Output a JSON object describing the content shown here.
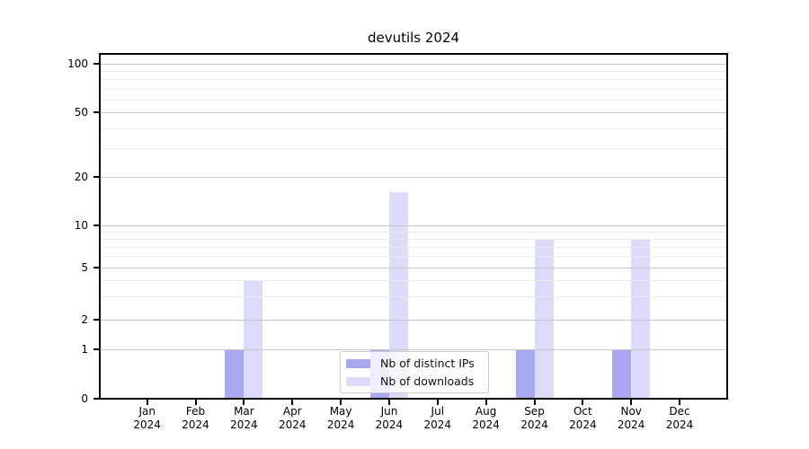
{
  "chart_data": {
    "type": "bar",
    "title": "devutils 2024",
    "categories": [
      "Jan",
      "Feb",
      "Mar",
      "Apr",
      "May",
      "Jun",
      "Jul",
      "Aug",
      "Sep",
      "Oct",
      "Nov",
      "Dec"
    ],
    "category_year": "2024",
    "series": [
      {
        "name": "Nb of distinct IPs",
        "color": "#a8a8f0",
        "values": [
          0,
          0,
          1,
          0,
          0,
          1,
          0,
          0,
          1,
          0,
          1,
          0
        ]
      },
      {
        "name": "Nb of downloads",
        "color": "#dcdcfa",
        "values": [
          0,
          0,
          4,
          0,
          0,
          16,
          0,
          0,
          8,
          0,
          8,
          0
        ]
      }
    ],
    "yaxis": {
      "scale": "symlog",
      "major_ticks": [
        0,
        1,
        2,
        5,
        10,
        20,
        50,
        100
      ],
      "minor_ticks": [
        3,
        4,
        6,
        7,
        8,
        9,
        30,
        40,
        60,
        70,
        80,
        90
      ],
      "ylim": [
        0,
        115
      ]
    },
    "xlabel": "",
    "ylabel": "",
    "grid": true,
    "legend_position": "lower center"
  }
}
